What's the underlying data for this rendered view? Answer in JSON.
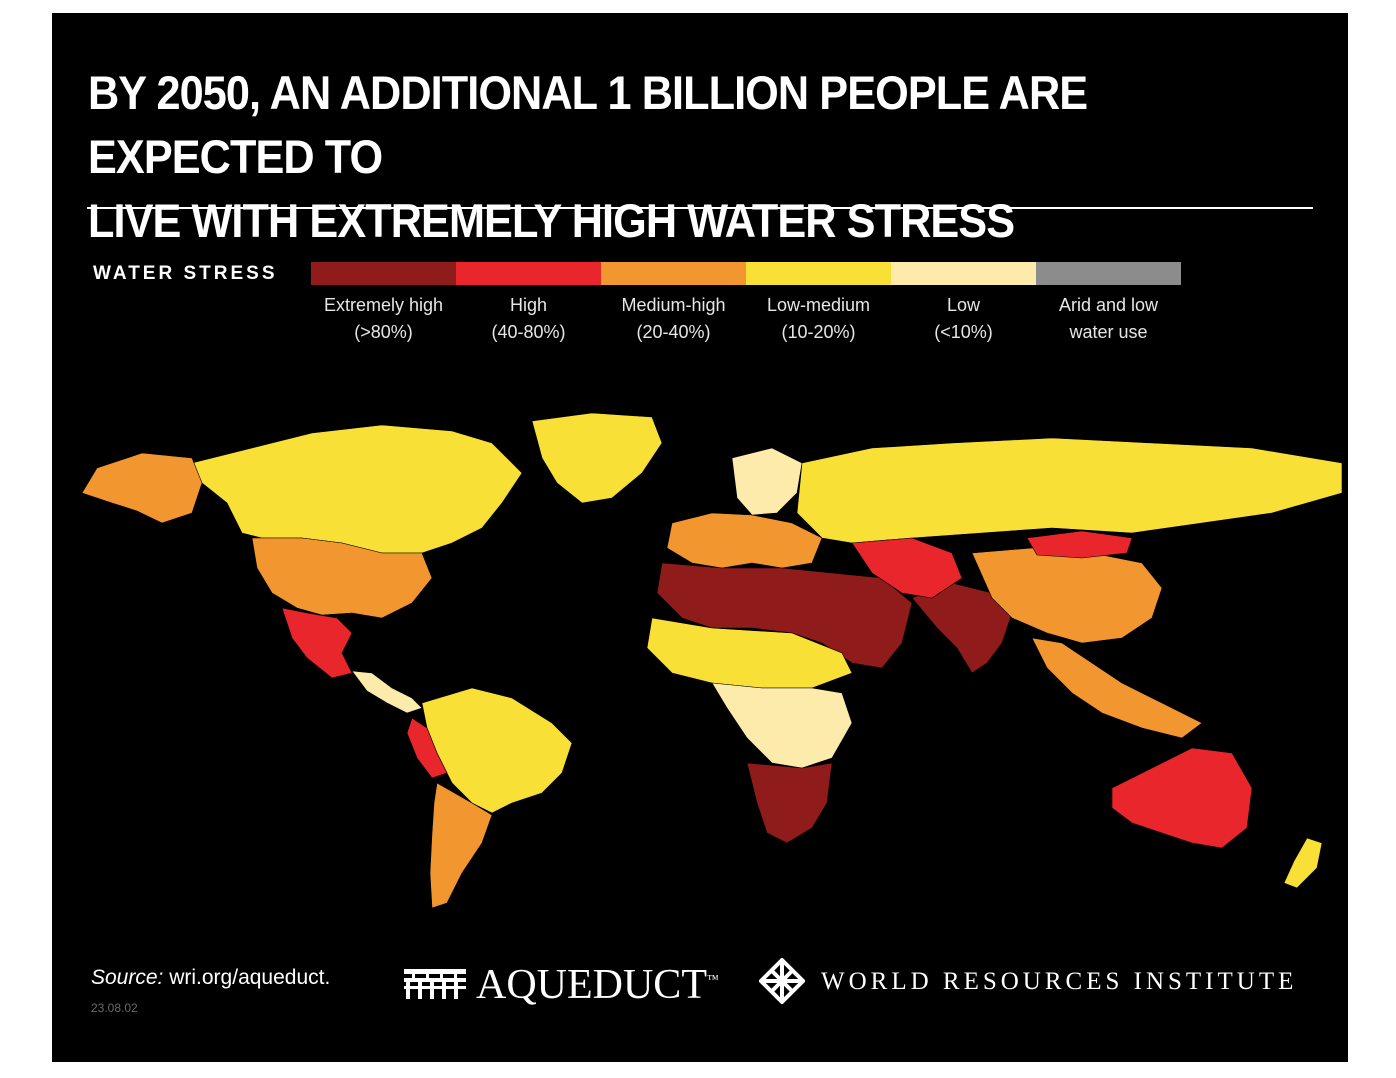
{
  "title": {
    "line1": "BY 2050, AN ADDITIONAL 1 BILLION PEOPLE ARE EXPECTED TO",
    "line2": "LIVE WITH EXTREMELY HIGH WATER STRESS"
  },
  "legend": {
    "title": "WATER STRESS",
    "items": [
      {
        "line1": "Extremely high",
        "line2": "(>80%)",
        "color": "#8f1b1b"
      },
      {
        "line1": "High",
        "line2": "(40-80%)",
        "color": "#e8262c"
      },
      {
        "line1": "Medium-high",
        "line2": "(20-40%)",
        "color": "#f2962f"
      },
      {
        "line1": "Low-medium",
        "line2": "(10-20%)",
        "color": "#f9e036"
      },
      {
        "line1": "Low",
        "line2": "(<10%)",
        "color": "#fcebaa"
      },
      {
        "line1": "Arid and low",
        "line2": "water use",
        "color": "#8c8c8c"
      }
    ]
  },
  "map": {
    "background_color": "#000000",
    "regions": [
      {
        "name": "north-america-north",
        "level": "Low-medium"
      },
      {
        "name": "alaska",
        "level": "Medium-high"
      },
      {
        "name": "greenland",
        "level": "Low-medium"
      },
      {
        "name": "united-states",
        "level": "Medium-high"
      },
      {
        "name": "mexico",
        "level": "High"
      },
      {
        "name": "central-america",
        "level": "Low"
      },
      {
        "name": "south-america",
        "level": "Low-medium"
      },
      {
        "name": "peru",
        "level": "High"
      },
      {
        "name": "chile-argentina",
        "level": "Medium-high"
      },
      {
        "name": "europe",
        "level": "Medium-high"
      },
      {
        "name": "scandinavia",
        "level": "Low"
      },
      {
        "name": "russia",
        "level": "Low-medium"
      },
      {
        "name": "north-africa-middle-east",
        "level": "Extremely high"
      },
      {
        "name": "sahel",
        "level": "Low-medium"
      },
      {
        "name": "central-africa",
        "level": "Low"
      },
      {
        "name": "southern-africa",
        "level": "Extremely high"
      },
      {
        "name": "south-asia",
        "level": "Extremely high"
      },
      {
        "name": "central-asia",
        "level": "High"
      },
      {
        "name": "china",
        "level": "Medium-high"
      },
      {
        "name": "mongolia",
        "level": "High"
      },
      {
        "name": "southeast-asia",
        "level": "Medium-high"
      },
      {
        "name": "australia",
        "level": "High"
      },
      {
        "name": "new-zealand",
        "level": "Low-medium"
      }
    ]
  },
  "footer": {
    "source_label": "Source:",
    "source_url": "wri.org/aqueduct.",
    "date": "23.08.02",
    "aqueduct_logo": "AQUEDUCT",
    "aqueduct_tm": "™",
    "wri_logo": "WORLD RESOURCES INSTITUTE"
  }
}
